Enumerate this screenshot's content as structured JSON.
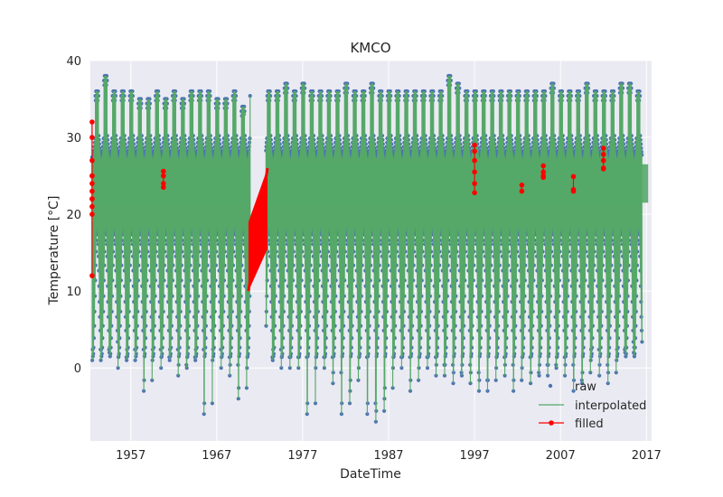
{
  "chart_data": {
    "type": "line",
    "title": "KMCO",
    "xlabel": "DateTime",
    "ylabel": "Temperature [°C]",
    "xlim": [
      1952.3,
      2017.6
    ],
    "ylim": [
      -9.5,
      40
    ],
    "x_ticks": [
      1957,
      1967,
      1977,
      1987,
      1997,
      2007,
      2017
    ],
    "y_ticks": [
      0,
      10,
      20,
      30,
      40
    ],
    "grid": true,
    "legend_position": "lower-right",
    "series": [
      {
        "name": "raw",
        "style": "markers",
        "color": "#4c72b0",
        "x_range": [
          1952.3,
          2017.6
        ],
        "gap": [
          1970.9,
          1972.7
        ],
        "typical_daily_range": [
          [
            20,
            33
          ],
          [
            3,
            20
          ]
        ],
        "annual_max_approx": [
          36,
          38,
          36,
          36,
          36,
          35,
          35,
          36,
          35,
          36,
          35,
          36,
          36,
          36,
          35,
          35,
          36,
          34,
          36,
          35,
          36,
          36,
          37,
          36,
          37,
          36,
          36,
          36,
          36,
          37,
          36,
          36,
          37,
          36,
          36,
          36,
          36,
          36,
          36,
          36,
          36,
          38,
          37,
          36,
          36,
          36,
          36,
          36,
          36,
          36,
          36,
          36,
          36,
          37,
          36,
          36,
          36,
          37,
          36,
          36,
          36,
          37,
          37,
          36
        ],
        "annual_min_approx": [
          1,
          1,
          2,
          0,
          1,
          1,
          -3,
          1,
          0,
          1,
          -1,
          0,
          1,
          -6,
          1,
          0,
          -1,
          -4,
          0,
          1,
          0,
          1,
          0,
          0,
          0,
          -6,
          0,
          0,
          -2,
          -6,
          -3,
          0,
          -6,
          -7,
          -4,
          0,
          0,
          -3,
          0,
          0,
          -1,
          -1,
          -2,
          -1,
          -2,
          -3,
          -3,
          0,
          -1,
          -3,
          0,
          -2,
          -1,
          -1,
          0,
          -1,
          -3,
          -2,
          1,
          -1,
          -2,
          1,
          2,
          2
        ]
      },
      {
        "name": "interpolated",
        "style": "line",
        "color": "#55a868",
        "x_range": [
          1952.3,
          2017.6
        ]
      },
      {
        "name": "filled",
        "style": "line+markers",
        "color": "#ff0000",
        "segments": [
          {
            "x": 1952.5,
            "values": [
              32,
              12,
              30,
              22,
              25,
              27,
              20,
              23,
              21,
              25,
              24,
              22
            ]
          },
          {
            "x": 1960.8,
            "values": [
              25.6,
              25,
              24,
              23.5
            ]
          },
          {
            "x": 1971.8,
            "range": [
              10,
              26
            ],
            "fill": [
              10,
              26,
              15.5,
              26
            ]
          },
          {
            "x": 1997.0,
            "values": [
              29,
              28.2,
              27,
              25.5,
              24,
              22.8
            ]
          },
          {
            "x": 2002.5,
            "values": [
              23.8,
              23
            ]
          },
          {
            "x": 2005.0,
            "values": [
              26.3,
              25.5,
              25,
              24.8
            ]
          },
          {
            "x": 2008.5,
            "values": [
              24.9,
              23.2,
              23
            ]
          },
          {
            "x": 2012.0,
            "values": [
              28.6,
              27.8,
              27,
              26,
              25.9
            ]
          }
        ]
      }
    ]
  }
}
